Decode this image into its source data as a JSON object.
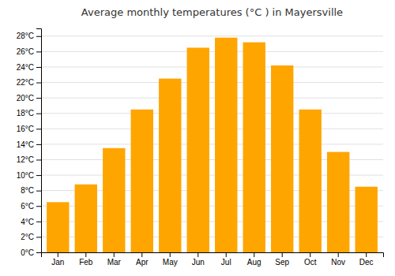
{
  "chart_data": {
    "type": "bar",
    "title": "Average monthly temperatures (°C ) in Mayersville",
    "categories": [
      "Jan",
      "Feb",
      "Mar",
      "Apr",
      "May",
      "Jun",
      "Jul",
      "Aug",
      "Sep",
      "Oct",
      "Nov",
      "Dec"
    ],
    "values": [
      6.5,
      8.8,
      13.5,
      18.5,
      22.5,
      26.5,
      27.8,
      27.2,
      24.2,
      18.5,
      13.0,
      8.5
    ],
    "color": "#FFA500",
    "ylim": [
      0,
      29
    ],
    "yticks": [
      {
        "value": 0,
        "label": "0°C"
      },
      {
        "value": 2,
        "label": "2°C"
      },
      {
        "value": 4,
        "label": "4°C"
      },
      {
        "value": 6,
        "label": "6°C"
      },
      {
        "value": 8,
        "label": "8°C"
      },
      {
        "value": 10,
        "label": "10°C"
      },
      {
        "value": 12,
        "label": "12°C"
      },
      {
        "value": 14,
        "label": "14°C"
      },
      {
        "value": 16,
        "label": "16°C"
      },
      {
        "value": 18,
        "label": "18°C"
      },
      {
        "value": 20,
        "label": "20°C"
      },
      {
        "value": 22,
        "label": "22°C"
      },
      {
        "value": 24,
        "label": "24°C"
      },
      {
        "value": 26,
        "label": "26°C"
      },
      {
        "value": 28,
        "label": "28°C"
      }
    ],
    "grid": true
  }
}
